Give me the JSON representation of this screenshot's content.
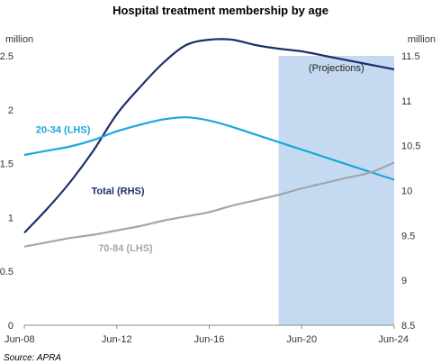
{
  "chart_data": {
    "type": "line",
    "title": "Hospital treatment membership by age",
    "left_unit": "million",
    "right_unit": "million",
    "source": "Source: APRA",
    "left_ylim": [
      0,
      2.5
    ],
    "right_ylim": [
      8.5,
      11.5
    ],
    "left_ticks": [
      "0",
      "0.5",
      "1",
      "1.5",
      "2",
      "2.5"
    ],
    "right_ticks": [
      "8.5",
      "9",
      "9.5",
      "10",
      "10.5",
      "11",
      "11.5"
    ],
    "x_ticks": [
      "Jun-08",
      "Jun-12",
      "Jun-16",
      "Jun-20",
      "Jun-24"
    ],
    "x_range": [
      2008.5,
      2024.5
    ],
    "projection": {
      "label": "(Projections)",
      "start": 2019.5,
      "end": 2024.5,
      "color": "#c5daf0"
    },
    "series": [
      {
        "name": "Total (RHS)",
        "axis": "right",
        "color": "#1b2f6b",
        "x": [
          2008.5,
          2009.5,
          2010.5,
          2011.5,
          2012.5,
          2013.5,
          2014.5,
          2015.5,
          2016.5,
          2017.5,
          2018.5,
          2019.5,
          2020.5,
          2021.5,
          2022.5,
          2023.5,
          2024.5
        ],
        "y": [
          9.53,
          9.8,
          10.1,
          10.45,
          10.85,
          11.15,
          11.42,
          11.62,
          11.68,
          11.68,
          11.62,
          11.58,
          11.55,
          11.5,
          11.45,
          11.4,
          11.35
        ]
      },
      {
        "name": "20-34 (LHS)",
        "axis": "left",
        "color": "#1aa7dc",
        "x": [
          2008.5,
          2009.5,
          2010.5,
          2011.5,
          2012.5,
          2013.5,
          2014.5,
          2015.5,
          2016.5,
          2017.5,
          2018.5,
          2019.5,
          2020.5,
          2021.5,
          2022.5,
          2023.5,
          2024.5
        ],
        "y": [
          1.58,
          1.62,
          1.66,
          1.72,
          1.8,
          1.86,
          1.91,
          1.93,
          1.9,
          1.84,
          1.77,
          1.7,
          1.63,
          1.56,
          1.49,
          1.42,
          1.35
        ]
      },
      {
        "name": "70-84 (LHS)",
        "axis": "left",
        "color": "#a2a6ad",
        "x": [
          2008.5,
          2009.5,
          2010.5,
          2011.5,
          2012.5,
          2013.5,
          2014.5,
          2015.5,
          2016.5,
          2017.5,
          2018.5,
          2019.5,
          2020.5,
          2021.5,
          2022.5,
          2023.5,
          2024.5
        ],
        "y": [
          0.73,
          0.77,
          0.81,
          0.84,
          0.88,
          0.92,
          0.97,
          1.01,
          1.05,
          1.11,
          1.16,
          1.21,
          1.27,
          1.32,
          1.37,
          1.42,
          1.51
        ]
      }
    ]
  }
}
